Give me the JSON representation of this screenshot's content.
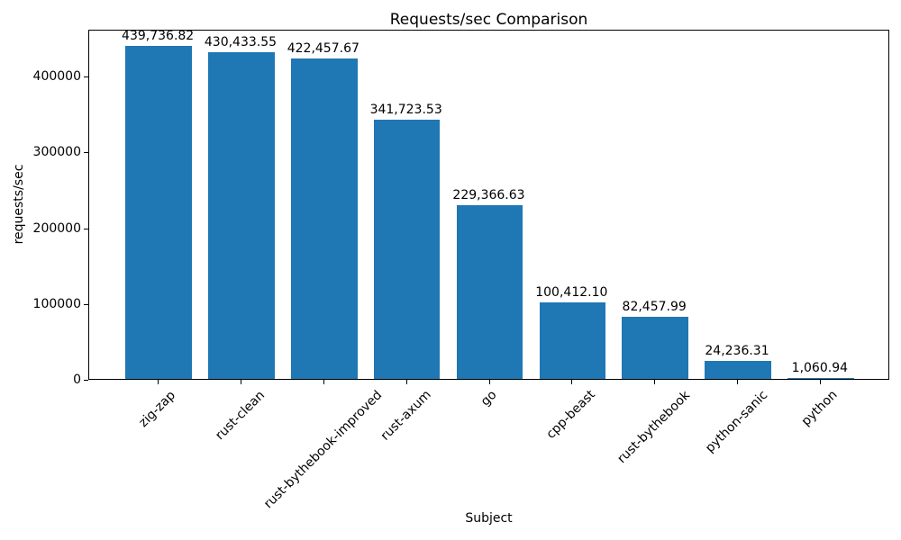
{
  "chart_data": {
    "type": "bar",
    "title": "Requests/sec Comparison",
    "xlabel": "Subject",
    "ylabel": "requests/sec",
    "categories": [
      "zig-zap",
      "rust-clean",
      "rust-bythebook-improved",
      "rust-axum",
      "go",
      "cpp-beast",
      "rust-bythebook",
      "python-sanic",
      "python"
    ],
    "values": [
      439736.82,
      430433.55,
      422457.67,
      341723.53,
      229366.63,
      100412.1,
      82457.99,
      24236.31,
      1060.94
    ],
    "value_labels": [
      "439,736.82",
      "430,433.55",
      "422,457.67",
      "341,723.53",
      "229,366.63",
      "100,412.10",
      "82,457.99",
      "24,236.31",
      "1,060.94"
    ],
    "yticks": [
      0,
      100000,
      200000,
      300000,
      400000
    ],
    "ytick_labels": [
      "0",
      "100000",
      "200000",
      "300000",
      "400000"
    ],
    "ylim": [
      0,
      461723.66
    ],
    "bar_color": "#1f77b4",
    "bar_width_fraction": 0.8,
    "grid": false,
    "legend": null,
    "xtick_rotation_deg": 45
  }
}
